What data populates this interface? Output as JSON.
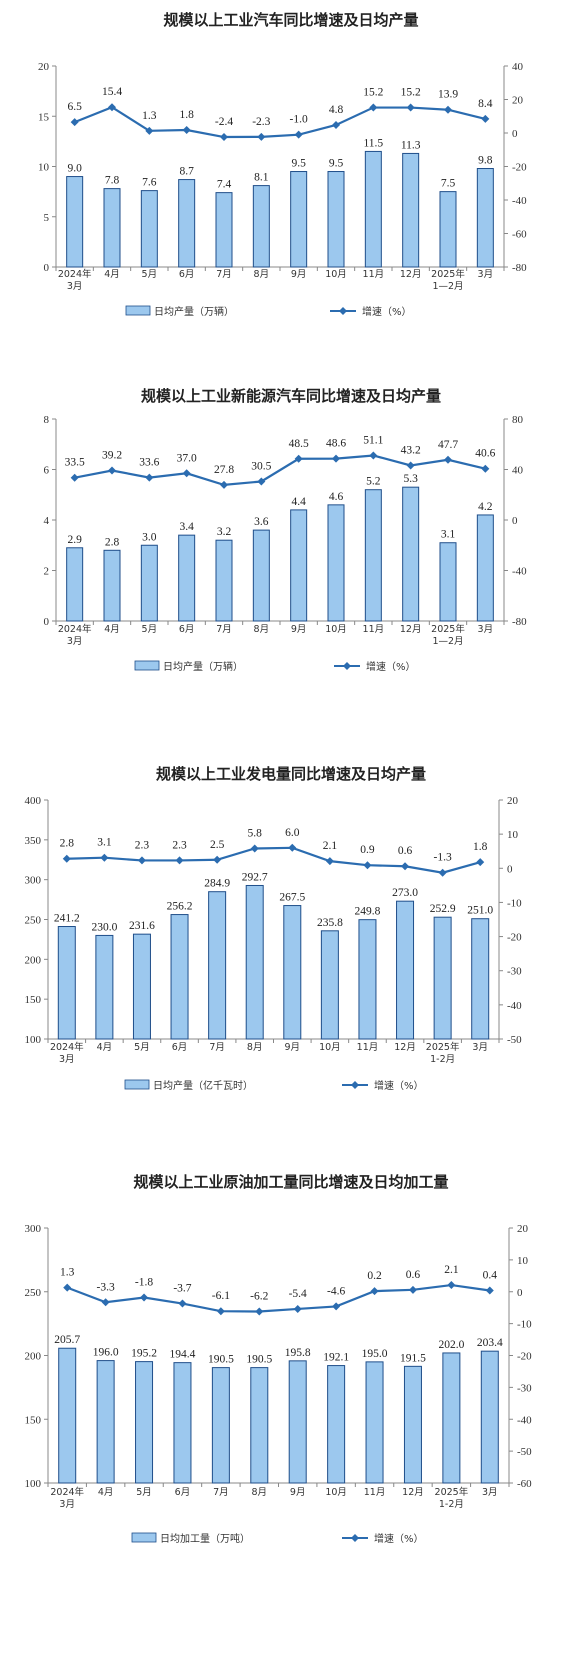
{
  "colors": {
    "bar_fill": "#9cc8ee",
    "bar_stroke": "#1f4e8a",
    "line": "#2b6cb0"
  },
  "chart_data": [
    {
      "type": "bar+line",
      "title": "规模以上工业汽车同比增速及日均产量",
      "categories": [
        [
          "2024年",
          "3月"
        ],
        [
          "4月"
        ],
        [
          "5月"
        ],
        [
          "6月"
        ],
        [
          "7月"
        ],
        [
          "8月"
        ],
        [
          "9月"
        ],
        [
          "10月"
        ],
        [
          "11月"
        ],
        [
          "12月"
        ],
        [
          "2025年",
          "1—2月"
        ],
        [
          "3月"
        ]
      ],
      "left_ticks": [
        "0",
        "5",
        "10",
        "15",
        "20"
      ],
      "right_ticks": [
        "-80",
        "-60",
        "-40",
        "-20",
        "0",
        "20",
        "40"
      ],
      "ylim_left": [
        0,
        20
      ],
      "ylim_right": [
        -80,
        40
      ],
      "series": [
        {
          "name": "日均产量（万辆）",
          "kind": "bar",
          "axis": "left",
          "values": [
            9.0,
            7.8,
            7.6,
            8.7,
            7.4,
            8.1,
            9.5,
            9.5,
            11.5,
            11.3,
            7.5,
            9.8
          ],
          "labels": [
            "9.0",
            "7.8",
            "7.6",
            "8.7",
            "7.4",
            "8.1",
            "9.5",
            "9.5",
            "11.5",
            "11.3",
            "7.5",
            "9.8"
          ]
        },
        {
          "name": "增速（%）",
          "kind": "line",
          "axis": "right",
          "values": [
            6.5,
            15.4,
            1.3,
            1.8,
            -2.4,
            -2.3,
            -1.0,
            4.8,
            15.2,
            15.2,
            13.9,
            8.4
          ],
          "labels": [
            "6.5",
            "15.4",
            "1.3",
            "1.8",
            "-2.4",
            "-2.3",
            "-1.0",
            "4.8",
            "15.2",
            "15.2",
            "13.9",
            "8.4"
          ]
        }
      ]
    },
    {
      "type": "bar+line",
      "title": "规模以上工业新能源汽车同比增速及日均产量",
      "categories": [
        [
          "2024年",
          "3月"
        ],
        [
          "4月"
        ],
        [
          "5月"
        ],
        [
          "6月"
        ],
        [
          "7月"
        ],
        [
          "8月"
        ],
        [
          "9月"
        ],
        [
          "10月"
        ],
        [
          "11月"
        ],
        [
          "12月"
        ],
        [
          "2025年",
          "1—2月"
        ],
        [
          "3月"
        ]
      ],
      "left_ticks": [
        "0",
        "2",
        "4",
        "6",
        "8"
      ],
      "right_ticks": [
        "-80",
        "-40",
        "0",
        "40",
        "80"
      ],
      "ylim_left": [
        0,
        8
      ],
      "ylim_right": [
        -80,
        80
      ],
      "series": [
        {
          "name": "日均产量（万辆）",
          "kind": "bar",
          "axis": "left",
          "values": [
            2.9,
            2.8,
            3.0,
            3.4,
            3.2,
            3.6,
            4.4,
            4.6,
            5.2,
            5.3,
            3.1,
            4.2
          ],
          "labels": [
            "2.9",
            "2.8",
            "3.0",
            "3.4",
            "3.2",
            "3.6",
            "4.4",
            "4.6",
            "5.2",
            "5.3",
            "3.1",
            "4.2"
          ]
        },
        {
          "name": "增速（%）",
          "kind": "line",
          "axis": "right",
          "values": [
            33.5,
            39.2,
            33.6,
            37.0,
            27.8,
            30.5,
            48.5,
            48.6,
            51.1,
            43.2,
            47.7,
            40.6
          ],
          "labels": [
            "33.5",
            "39.2",
            "33.6",
            "37.0",
            "27.8",
            "30.5",
            "48.5",
            "48.6",
            "51.1",
            "43.2",
            "47.7",
            "40.6"
          ]
        }
      ]
    },
    {
      "type": "bar+line",
      "title": "规模以上工业发电量同比增速及日均产量",
      "categories": [
        [
          "2024年",
          "3月"
        ],
        [
          "4月"
        ],
        [
          "5月"
        ],
        [
          "6月"
        ],
        [
          "7月"
        ],
        [
          "8月"
        ],
        [
          "9月"
        ],
        [
          "10月"
        ],
        [
          "11月"
        ],
        [
          "12月"
        ],
        [
          "2025年",
          "1-2月"
        ],
        [
          "3月"
        ]
      ],
      "left_ticks": [
        "100",
        "150",
        "200",
        "250",
        "300",
        "350",
        "400"
      ],
      "right_ticks": [
        "-50",
        "-40",
        "-30",
        "-20",
        "-10",
        "0",
        "10",
        "20"
      ],
      "ylim_left": [
        100,
        400
      ],
      "ylim_right": [
        -50,
        20
      ],
      "series": [
        {
          "name": "日均产量（亿千瓦时）",
          "kind": "bar",
          "axis": "left",
          "values": [
            241.2,
            230.0,
            231.6,
            256.2,
            284.9,
            292.7,
            267.5,
            235.8,
            249.8,
            273.0,
            252.9,
            251.0
          ],
          "labels": [
            "241.2",
            "230.0",
            "231.6",
            "256.2",
            "284.9",
            "292.7",
            "267.5",
            "235.8",
            "249.8",
            "273.0",
            "252.9",
            "251.0"
          ]
        },
        {
          "name": "增速（%）",
          "kind": "line",
          "axis": "right",
          "values": [
            2.8,
            3.1,
            2.3,
            2.3,
            2.5,
            5.8,
            6.0,
            2.1,
            0.9,
            0.6,
            -1.3,
            1.8
          ],
          "labels": [
            "2.8",
            "3.1",
            "2.3",
            "2.3",
            "2.5",
            "5.8",
            "6.0",
            "2.1",
            "0.9",
            "0.6",
            "-1.3",
            "1.8"
          ]
        }
      ]
    },
    {
      "type": "bar+line",
      "title": "规模以上工业原油加工量同比增速及日均加工量",
      "categories": [
        [
          "2024年",
          "3月"
        ],
        [
          "4月"
        ],
        [
          "5月"
        ],
        [
          "6月"
        ],
        [
          "7月"
        ],
        [
          "8月"
        ],
        [
          "9月"
        ],
        [
          "10月"
        ],
        [
          "11月"
        ],
        [
          "12月"
        ],
        [
          "2025年",
          "1-2月"
        ],
        [
          "3月"
        ]
      ],
      "left_ticks": [
        "100",
        "150",
        "200",
        "250",
        "300"
      ],
      "right_ticks": [
        "-60",
        "-50",
        "-40",
        "-30",
        "-20",
        "-10",
        "0",
        "10",
        "20"
      ],
      "ylim_left": [
        100,
        300
      ],
      "ylim_right": [
        -60,
        20
      ],
      "series": [
        {
          "name": "日均加工量（万吨）",
          "kind": "bar",
          "axis": "left",
          "values": [
            205.7,
            196.0,
            195.2,
            194.4,
            190.5,
            190.5,
            195.8,
            192.1,
            195.0,
            191.5,
            202.0,
            203.4
          ],
          "labels": [
            "205.7",
            "196.0",
            "195.2",
            "194.4",
            "190.5",
            "190.5",
            "195.8",
            "192.1",
            "195.0",
            "191.5",
            "202.0",
            "203.4"
          ]
        },
        {
          "name": "增速（%）",
          "kind": "line",
          "axis": "right",
          "values": [
            1.3,
            -3.3,
            -1.8,
            -3.7,
            -6.1,
            -6.2,
            -5.4,
            -4.6,
            0.2,
            0.6,
            2.1,
            0.4
          ],
          "labels": [
            "1.3",
            "-3.3",
            "-1.8",
            "-3.7",
            "-6.1",
            "-6.2",
            "-5.4",
            "-4.6",
            "0.2",
            "0.6",
            "2.1",
            "0.4"
          ]
        }
      ]
    }
  ]
}
